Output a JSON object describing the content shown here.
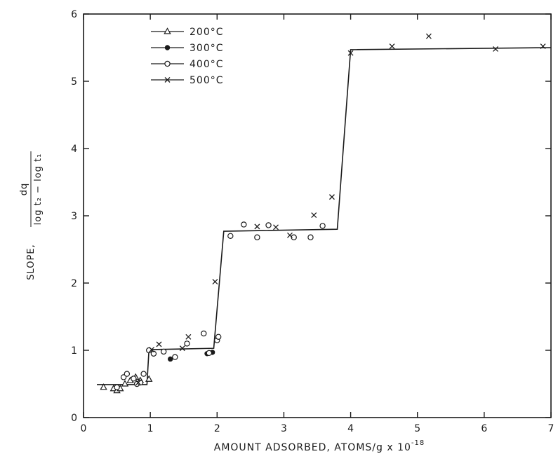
{
  "chart_data": {
    "type": "scatter",
    "xlabel": "AMOUNT ADSORBED, ATOMS/g x 10",
    "xlabel_exponent": "-18",
    "ylabel_prefix": "SLOPE,",
    "ylabel_numerator": "dq",
    "ylabel_denominator": "log t₂ − log t₁",
    "xlim": [
      0,
      7
    ],
    "ylim": [
      0,
      6
    ],
    "x_ticks": [
      0,
      1,
      2,
      3,
      4,
      5,
      6,
      7
    ],
    "x_tick_labels": [
      "0",
      "1",
      "2",
      "3",
      "4",
      "5",
      "6",
      "7"
    ],
    "y_ticks": [
      0,
      1,
      2,
      3,
      4,
      5,
      6
    ],
    "y_tick_labels": [
      "0",
      "1",
      "2",
      "3",
      "4",
      "5",
      "6"
    ],
    "grid": false,
    "legend_position": "top-left",
    "series": [
      {
        "name": "200°C",
        "marker": "triangle",
        "points": [
          [
            0.3,
            0.45
          ],
          [
            0.45,
            0.43
          ],
          [
            0.5,
            0.4
          ],
          [
            0.55,
            0.43
          ],
          [
            0.62,
            0.5
          ],
          [
            0.7,
            0.55
          ],
          [
            0.78,
            0.6
          ],
          [
            0.85,
            0.55
          ],
          [
            0.98,
            0.57
          ]
        ]
      },
      {
        "name": "300°C",
        "marker": "filled-circle",
        "points": [
          [
            1.3,
            0.87
          ],
          [
            1.85,
            0.95
          ],
          [
            1.93,
            0.97
          ]
        ]
      },
      {
        "name": "400°C",
        "marker": "open-circle",
        "points": [
          [
            0.5,
            0.45
          ],
          [
            0.6,
            0.6
          ],
          [
            0.65,
            0.65
          ],
          [
            0.75,
            0.58
          ],
          [
            0.8,
            0.5
          ],
          [
            0.85,
            0.52
          ],
          [
            0.9,
            0.65
          ],
          [
            0.98,
            1.0
          ],
          [
            1.05,
            0.95
          ],
          [
            1.2,
            0.98
          ],
          [
            1.37,
            0.9
          ],
          [
            1.55,
            1.1
          ],
          [
            1.8,
            1.25
          ],
          [
            1.88,
            0.96
          ],
          [
            2.0,
            1.15
          ],
          [
            2.02,
            1.2
          ],
          [
            2.2,
            2.7
          ],
          [
            2.4,
            2.87
          ],
          [
            2.6,
            2.68
          ],
          [
            2.77,
            2.86
          ],
          [
            3.15,
            2.68
          ],
          [
            3.4,
            2.68
          ],
          [
            3.58,
            2.85
          ]
        ]
      },
      {
        "name": "500°C",
        "marker": "x",
        "points": [
          [
            0.82,
            0.52
          ],
          [
            1.02,
            1.01
          ],
          [
            1.13,
            1.09
          ],
          [
            1.48,
            1.03
          ],
          [
            1.57,
            1.2
          ],
          [
            1.97,
            2.02
          ],
          [
            2.6,
            2.84
          ],
          [
            2.88,
            2.83
          ],
          [
            3.09,
            2.71
          ],
          [
            3.45,
            3.01
          ],
          [
            3.72,
            3.28
          ],
          [
            4.0,
            5.42
          ],
          [
            4.62,
            5.52
          ],
          [
            5.17,
            5.67
          ],
          [
            6.17,
            5.48
          ],
          [
            6.88,
            5.52
          ]
        ]
      }
    ],
    "step_line": [
      [
        0.2,
        0.49
      ],
      [
        0.95,
        0.49
      ],
      [
        0.98,
        1.01
      ],
      [
        1.95,
        1.03
      ],
      [
        2.1,
        2.77
      ],
      [
        3.8,
        2.8
      ],
      [
        4.0,
        5.47
      ],
      [
        7.0,
        5.5
      ]
    ]
  }
}
